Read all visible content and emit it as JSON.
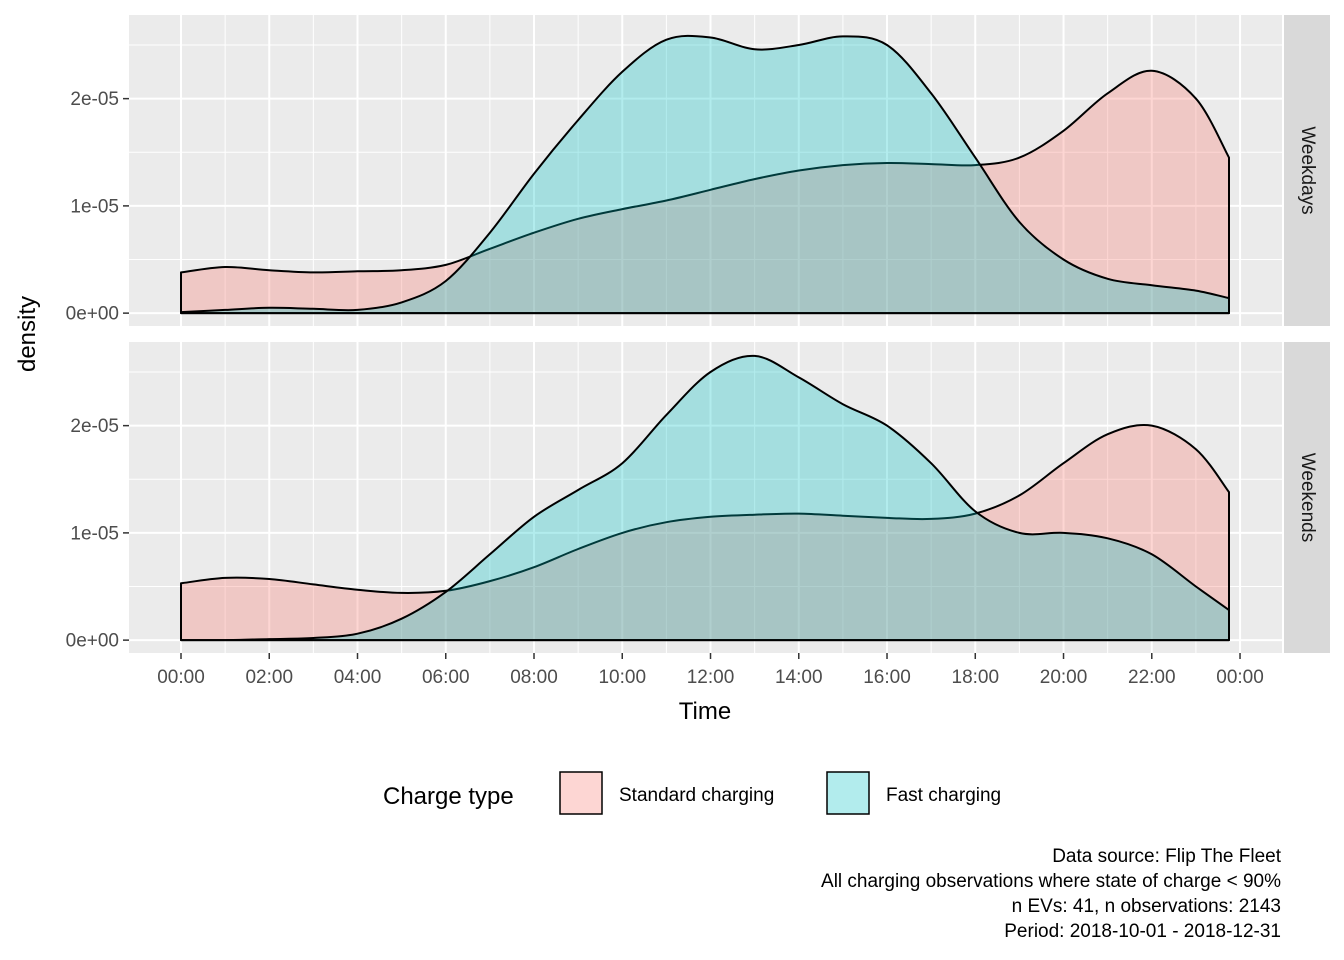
{
  "chart_data": {
    "type": "area",
    "chart_kind": "density",
    "xlabel": "Time",
    "ylabel": "density",
    "x_ticks": [
      "00:00",
      "02:00",
      "04:00",
      "06:00",
      "08:00",
      "10:00",
      "12:00",
      "14:00",
      "16:00",
      "18:00",
      "20:00",
      "22:00",
      "00:00"
    ],
    "x_range_hours": [
      0,
      24
    ],
    "x_data_range_hours": [
      0,
      23.75
    ],
    "y_ticks": [
      {
        "value": 0,
        "label": "0e+00"
      },
      {
        "value": 1e-05,
        "label": "1e-05"
      },
      {
        "value": 2e-05,
        "label": "2e-05"
      }
    ],
    "ylim": [
      -1.2e-06,
      2.78e-05
    ],
    "grid": true,
    "legend": {
      "title": "Charge type",
      "position": "bottom",
      "entries": [
        {
          "label": "Standard charging",
          "color": "#F8766D"
        },
        {
          "label": "Fast charging",
          "color": "#00BFC4"
        }
      ]
    },
    "fill_alpha": 0.3,
    "x_hours": [
      0,
      1,
      2,
      3,
      4,
      5,
      6,
      7,
      8,
      9,
      10,
      11,
      12,
      13,
      14,
      15,
      16,
      17,
      18,
      19,
      20,
      21,
      22,
      23,
      23.75
    ],
    "panels": [
      {
        "label": "Weekdays",
        "series": [
          {
            "name": "Standard charging",
            "color": "#F8766D",
            "values": [
              3.8e-06,
              4.3e-06,
              4e-06,
              3.8e-06,
              3.9e-06,
              4e-06,
              4.5e-06,
              6e-06,
              7.5e-06,
              8.8e-06,
              9.7e-06,
              1.05e-05,
              1.15e-05,
              1.25e-05,
              1.33e-05,
              1.38e-05,
              1.4e-05,
              1.39e-05,
              1.38e-05,
              1.45e-05,
              1.7e-05,
              2.05e-05,
              2.26e-05,
              2e-05,
              1.45e-05
            ]
          },
          {
            "name": "Fast charging",
            "color": "#00BFC4",
            "values": [
              1e-07,
              3e-07,
              5e-07,
              4e-07,
              3e-07,
              1e-06,
              3e-06,
              7.5e-06,
              1.3e-05,
              1.8e-05,
              2.25e-05,
              2.55e-05,
              2.57e-05,
              2.46e-05,
              2.5e-05,
              2.58e-05,
              2.5e-05,
              2.05e-05,
              1.45e-05,
              8.5e-06,
              5e-06,
              3.2e-06,
              2.6e-06,
              2.1e-06,
              1.4e-06
            ]
          }
        ]
      },
      {
        "label": "Weekends",
        "series": [
          {
            "name": "Standard charging",
            "color": "#F8766D",
            "values": [
              5.3e-06,
              5.8e-06,
              5.7e-06,
              5.2e-06,
              4.7e-06,
              4.4e-06,
              4.6e-06,
              5.5e-06,
              6.8e-06,
              8.5e-06,
              1e-05,
              1.1e-05,
              1.15e-05,
              1.17e-05,
              1.18e-05,
              1.16e-05,
              1.14e-05,
              1.13e-05,
              1.18e-05,
              1.35e-05,
              1.65e-05,
              1.92e-05,
              2e-05,
              1.78e-05,
              1.38e-05
            ]
          },
          {
            "name": "Fast charging",
            "color": "#00BFC4",
            "values": [
              0.0,
              0.0,
              1e-07,
              2e-07,
              6e-07,
              2e-06,
              4.5e-06,
              8e-06,
              1.15e-05,
              1.4e-05,
              1.65e-05,
              2.1e-05,
              2.5e-05,
              2.65e-05,
              2.45e-05,
              2.2e-05,
              2e-05,
              1.65e-05,
              1.2e-05,
              1e-05,
              1e-05,
              9.5e-06,
              8e-06,
              5e-06,
              2.8e-06
            ]
          }
        ]
      }
    ],
    "caption": [
      "Data source: Flip The Fleet",
      "All charging observations where state of charge < 90%",
      "n EVs: 41, n observations: 2143",
      "Period: 2018-10-01 - 2018-12-31"
    ]
  }
}
